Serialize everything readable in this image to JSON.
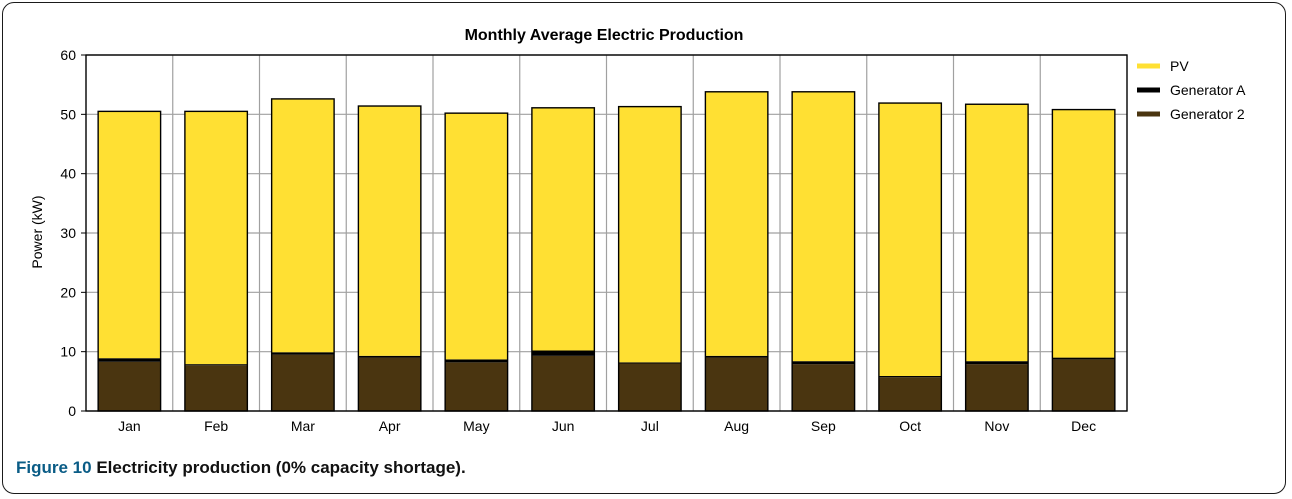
{
  "chart_data": {
    "type": "bar",
    "stacked": true,
    "title": "Monthly Average Electric Production",
    "xlabel": "",
    "ylabel": "Power (kW)",
    "ylim": [
      0,
      60
    ],
    "yticks": [
      0,
      10,
      20,
      30,
      40,
      50,
      60
    ],
    "grid": true,
    "legend_position": "right",
    "categories": [
      "Jan",
      "Feb",
      "Mar",
      "Apr",
      "May",
      "Jun",
      "Jul",
      "Aug",
      "Sep",
      "Oct",
      "Nov",
      "Dec"
    ],
    "series": [
      {
        "name": "Generator 2",
        "color": "#4a3510",
        "values": [
          8.3,
          7.7,
          9.5,
          9.0,
          8.2,
          9.3,
          8.0,
          9.0,
          7.9,
          5.7,
          7.9,
          8.7
        ]
      },
      {
        "name": "Generator A",
        "color": "#000000",
        "values": [
          0.6,
          0.2,
          0.4,
          0.3,
          0.5,
          0.9,
          0.2,
          0.3,
          0.5,
          0.2,
          0.5,
          0.3
        ]
      },
      {
        "name": "PV",
        "color": "#ffe033",
        "values": [
          41.6,
          42.6,
          42.7,
          42.1,
          41.5,
          40.9,
          43.1,
          44.5,
          45.4,
          46.0,
          43.3,
          41.8
        ]
      }
    ],
    "legend_order": [
      "PV",
      "Generator A",
      "Generator 2"
    ]
  },
  "caption": {
    "figure_label": "Figure 10",
    "text": "Electricity production (0% capacity shortage)."
  }
}
